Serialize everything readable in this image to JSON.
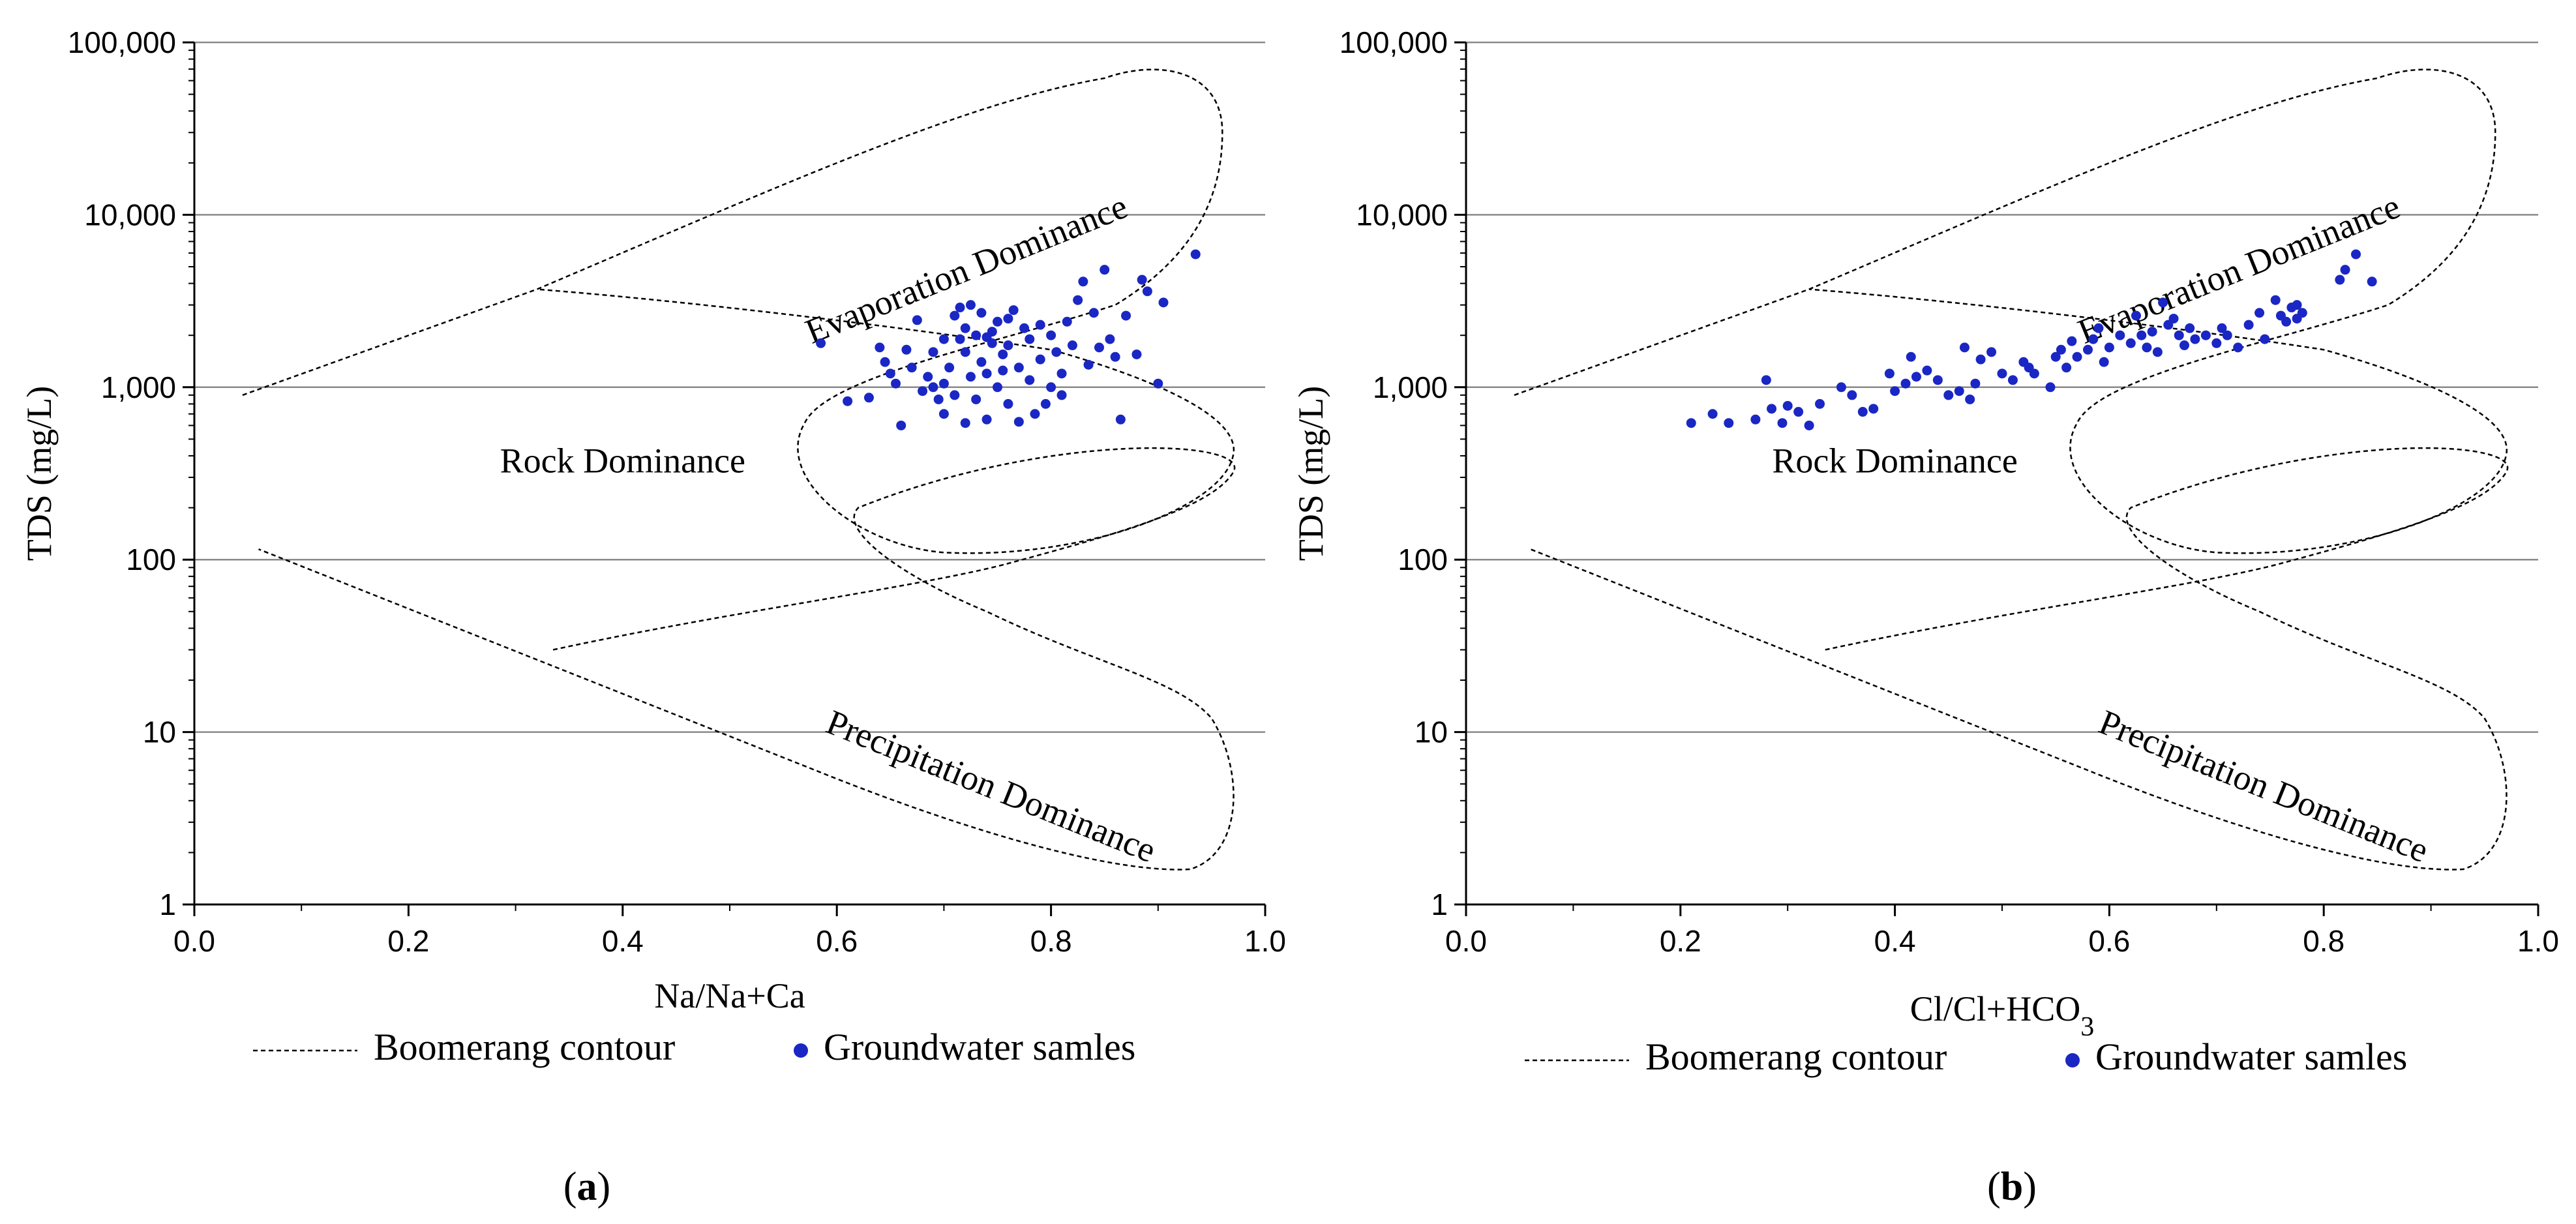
{
  "chart_data": [
    {
      "type": "scatter",
      "panel": "(a)",
      "panel_letter": "a",
      "xlabel": "Na/Na+Ca",
      "ylabel": "TDS (mg/L)",
      "xlim": [
        0.0,
        1.0
      ],
      "ylim": [
        1,
        100000
      ],
      "yscale": "log",
      "x_ticks": [
        "0.0",
        "0.2",
        "0.4",
        "0.6",
        "0.8",
        "1.0"
      ],
      "y_ticks": [
        "1",
        "10",
        "100",
        "1,000",
        "10,000",
        "100,000"
      ],
      "grid": "horizontal",
      "regions": [
        "Evaporation Dominance",
        "Rock Dominance",
        "Precipitation Dominance"
      ],
      "legend": {
        "contour": "Boomerang contour",
        "samples": "Groundwater samles"
      },
      "series": [
        {
          "name": "Groundwater samles",
          "points": [
            [
              0.585,
              1800
            ],
            [
              0.61,
              830
            ],
            [
              0.63,
              870
            ],
            [
              0.64,
              1700
            ],
            [
              0.645,
              1400
            ],
            [
              0.65,
              1200
            ],
            [
              0.655,
              1050
            ],
            [
              0.66,
              600
            ],
            [
              0.665,
              1650
            ],
            [
              0.67,
              1300
            ],
            [
              0.675,
              2450
            ],
            [
              0.68,
              950
            ],
            [
              0.685,
              1150
            ],
            [
              0.69,
              1600
            ],
            [
              0.695,
              850
            ],
            [
              0.7,
              1050
            ],
            [
              0.7,
              700
            ],
            [
              0.705,
              1300
            ],
            [
              0.71,
              900
            ],
            [
              0.71,
              2600
            ],
            [
              0.715,
              2900
            ],
            [
              0.715,
              1900
            ],
            [
              0.72,
              620
            ],
            [
              0.72,
              1600
            ],
            [
              0.725,
              3000
            ],
            [
              0.725,
              1150
            ],
            [
              0.73,
              2000
            ],
            [
              0.73,
              850
            ],
            [
              0.735,
              1400
            ],
            [
              0.74,
              1200
            ],
            [
              0.74,
              650
            ],
            [
              0.745,
              1800
            ],
            [
              0.745,
              2100
            ],
            [
              0.75,
              1000
            ],
            [
              0.75,
              2400
            ],
            [
              0.755,
              1550
            ],
            [
              0.76,
              800
            ],
            [
              0.76,
              1750
            ],
            [
              0.765,
              2800
            ],
            [
              0.77,
              1300
            ],
            [
              0.77,
              630
            ],
            [
              0.775,
              2200
            ],
            [
              0.78,
              1900
            ],
            [
              0.78,
              1100
            ],
            [
              0.785,
              700
            ],
            [
              0.79,
              1450
            ],
            [
              0.795,
              800
            ],
            [
              0.8,
              2000
            ],
            [
              0.8,
              1000
            ],
            [
              0.805,
              1600
            ],
            [
              0.81,
              1200
            ],
            [
              0.815,
              2400
            ],
            [
              0.82,
              1750
            ],
            [
              0.825,
              3200
            ],
            [
              0.83,
              4100
            ],
            [
              0.835,
              1350
            ],
            [
              0.84,
              2700
            ],
            [
              0.845,
              1700
            ],
            [
              0.85,
              4800
            ],
            [
              0.855,
              1900
            ],
            [
              0.86,
              1500
            ],
            [
              0.865,
              650
            ],
            [
              0.87,
              2600
            ],
            [
              0.88,
              1550
            ],
            [
              0.885,
              4200
            ],
            [
              0.89,
              3600
            ],
            [
              0.9,
              1050
            ],
            [
              0.905,
              3100
            ],
            [
              0.935,
              5900
            ],
            [
              0.74,
              1950
            ],
            [
              0.72,
              2200
            ],
            [
              0.76,
              2500
            ],
            [
              0.7,
              1900
            ],
            [
              0.79,
              2300
            ],
            [
              0.755,
              1250
            ],
            [
              0.735,
              2700
            ],
            [
              0.69,
              1000
            ],
            [
              0.81,
              900
            ]
          ]
        }
      ]
    },
    {
      "type": "scatter",
      "panel": "(b)",
      "panel_letter": "b",
      "xlabel": "Cl/Cl+HCO",
      "xlabel_sub": "3",
      "ylabel": "TDS (mg/L)",
      "xlim": [
        0.0,
        1.0
      ],
      "ylim": [
        1,
        100000
      ],
      "yscale": "log",
      "x_ticks": [
        "0.0",
        "0.2",
        "0.4",
        "0.6",
        "0.8",
        "1.0"
      ],
      "y_ticks": [
        "1",
        "10",
        "100",
        "1,000",
        "10,000",
        "100,000"
      ],
      "grid": "horizontal",
      "regions": [
        "Evaporation Dominance",
        "Rock Dominance",
        "Precipitation Dominance"
      ],
      "legend": {
        "contour": "Boomerang contour",
        "samples": "Groundwater samles"
      },
      "series": [
        {
          "name": "Groundwater samles",
          "points": [
            [
              0.21,
              620
            ],
            [
              0.23,
              700
            ],
            [
              0.245,
              620
            ],
            [
              0.27,
              650
            ],
            [
              0.28,
              1100
            ],
            [
              0.285,
              750
            ],
            [
              0.295,
              620
            ],
            [
              0.3,
              780
            ],
            [
              0.31,
              720
            ],
            [
              0.32,
              600
            ],
            [
              0.33,
              800
            ],
            [
              0.35,
              1000
            ],
            [
              0.36,
              900
            ],
            [
              0.37,
              720
            ],
            [
              0.38,
              750
            ],
            [
              0.395,
              1200
            ],
            [
              0.4,
              950
            ],
            [
              0.41,
              1050
            ],
            [
              0.415,
              1500
            ],
            [
              0.42,
              1150
            ],
            [
              0.43,
              1250
            ],
            [
              0.44,
              1100
            ],
            [
              0.45,
              900
            ],
            [
              0.46,
              950
            ],
            [
              0.465,
              1700
            ],
            [
              0.47,
              850
            ],
            [
              0.475,
              1050
            ],
            [
              0.48,
              1450
            ],
            [
              0.49,
              1600
            ],
            [
              0.5,
              1200
            ],
            [
              0.51,
              1100
            ],
            [
              0.52,
              1400
            ],
            [
              0.525,
              1300
            ],
            [
              0.53,
              1200
            ],
            [
              0.545,
              1000
            ],
            [
              0.55,
              1500
            ],
            [
              0.555,
              1650
            ],
            [
              0.56,
              1300
            ],
            [
              0.565,
              1850
            ],
            [
              0.57,
              1500
            ],
            [
              0.58,
              1650
            ],
            [
              0.585,
              1900
            ],
            [
              0.59,
              2200
            ],
            [
              0.595,
              1400
            ],
            [
              0.6,
              1700
            ],
            [
              0.61,
              2000
            ],
            [
              0.62,
              1800
            ],
            [
              0.625,
              2600
            ],
            [
              0.63,
              2000
            ],
            [
              0.635,
              1700
            ],
            [
              0.64,
              2100
            ],
            [
              0.645,
              1600
            ],
            [
              0.65,
              3100
            ],
            [
              0.655,
              2300
            ],
            [
              0.66,
              2500
            ],
            [
              0.665,
              2000
            ],
            [
              0.67,
              1750
            ],
            [
              0.675,
              2200
            ],
            [
              0.68,
              1900
            ],
            [
              0.69,
              2000
            ],
            [
              0.7,
              1800
            ],
            [
              0.705,
              2200
            ],
            [
              0.71,
              2000
            ],
            [
              0.72,
              1700
            ],
            [
              0.73,
              2300
            ],
            [
              0.74,
              2700
            ],
            [
              0.745,
              1900
            ],
            [
              0.755,
              3200
            ],
            [
              0.76,
              2600
            ],
            [
              0.765,
              2400
            ],
            [
              0.77,
              2900
            ],
            [
              0.775,
              3000
            ],
            [
              0.78,
              2700
            ],
            [
              0.815,
              4200
            ],
            [
              0.82,
              4800
            ],
            [
              0.83,
              5900
            ],
            [
              0.845,
              4100
            ],
            [
              0.775,
              2500
            ]
          ]
        }
      ]
    }
  ]
}
